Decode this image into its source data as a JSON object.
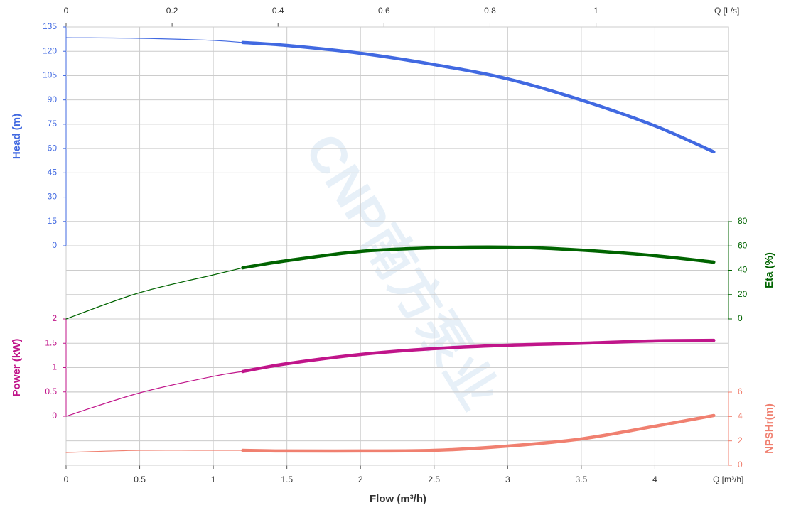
{
  "chart_data": {
    "type": "line",
    "x_label": "Flow (m³/h)",
    "x_unit_label": "Q [m³/h]",
    "x2_unit_label": "Q [L/s]",
    "watermark": "CNP南方泵业",
    "grid": true,
    "xlim": [
      0,
      4.5
    ],
    "xticks": [
      0,
      0.5,
      1,
      1.5,
      2,
      2.5,
      3,
      3.5,
      4
    ],
    "x2lim": [
      0,
      1.25
    ],
    "x2ticks": [
      0,
      0.2,
      0.4,
      0.6,
      0.8,
      1
    ],
    "x": [
      0,
      0.5,
      1,
      1.2,
      1.5,
      2,
      2.5,
      3,
      3.5,
      4,
      4.4
    ],
    "axes": [
      {
        "id": "head",
        "label": "Head (m)",
        "side": "left",
        "color": "#4169e1",
        "ylim": [
          0,
          135
        ],
        "yticks": [
          0,
          15,
          30,
          45,
          60,
          75,
          90,
          105,
          120,
          135
        ]
      },
      {
        "id": "eta",
        "label": "Eta (%)",
        "side": "right",
        "color": "#006400",
        "ylim": [
          0,
          80
        ],
        "yticks": [
          0,
          20,
          40,
          60,
          80
        ]
      },
      {
        "id": "power",
        "label": "Power (kW)",
        "side": "left",
        "color": "#c0158a",
        "ylim": [
          0,
          2
        ],
        "yticks": [
          0,
          0.5,
          1,
          1.5,
          2
        ]
      },
      {
        "id": "npsh",
        "label": "NPSHr(m)",
        "side": "right",
        "color": "#f08070",
        "ylim": [
          0,
          6
        ],
        "yticks": [
          0,
          2,
          4,
          6
        ]
      }
    ],
    "series": [
      {
        "axis": "head",
        "style": "thin",
        "values": [
          128.4,
          128,
          126.7,
          125.4,
          null,
          null,
          null,
          null,
          null,
          null,
          null
        ]
      },
      {
        "axis": "head",
        "style": "thick",
        "values": [
          null,
          null,
          null,
          125.4,
          123.6,
          118.8,
          111.8,
          103,
          89.9,
          74,
          57.9
        ]
      },
      {
        "axis": "eta",
        "style": "thin",
        "values": [
          0,
          21.6,
          36.2,
          42,
          null,
          null,
          null,
          null,
          null,
          null,
          null
        ]
      },
      {
        "axis": "eta",
        "style": "thick",
        "values": [
          null,
          null,
          null,
          42,
          47.9,
          55.5,
          58.4,
          59,
          56.6,
          52,
          46.7
        ]
      },
      {
        "axis": "power",
        "style": "thin",
        "values": [
          0,
          0.48,
          0.82,
          0.92,
          null,
          null,
          null,
          null,
          null,
          null,
          null
        ]
      },
      {
        "axis": "power",
        "style": "thick",
        "values": [
          null,
          null,
          null,
          0.92,
          1.08,
          1.27,
          1.39,
          1.46,
          1.5,
          1.55,
          1.56
        ]
      },
      {
        "axis": "npsh",
        "style": "thin",
        "values": [
          1.05,
          1.22,
          1.22,
          1.22,
          null,
          null,
          null,
          null,
          null,
          null,
          null
        ]
      },
      {
        "axis": "npsh",
        "style": "thick",
        "values": [
          null,
          null,
          null,
          1.22,
          1.17,
          1.17,
          1.22,
          1.57,
          2.16,
          3.2,
          4.08
        ]
      }
    ]
  }
}
